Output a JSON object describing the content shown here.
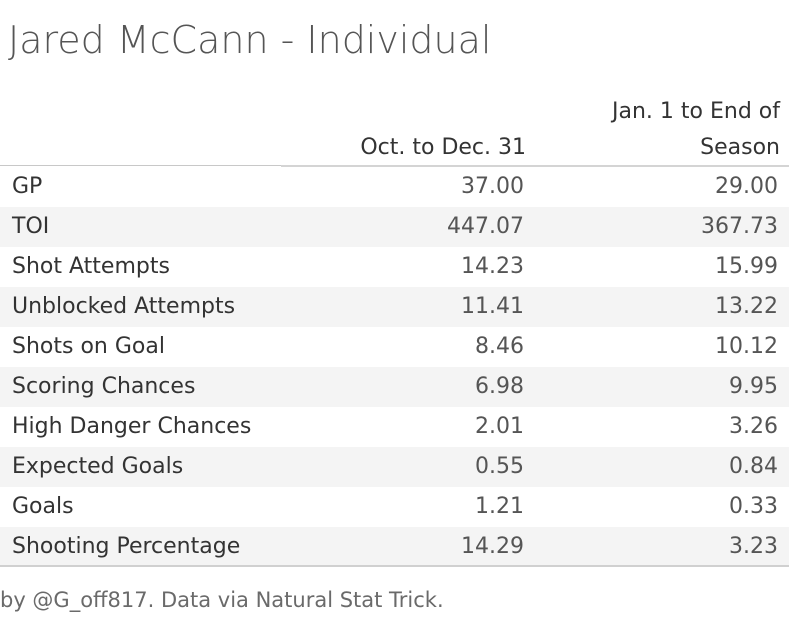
{
  "chart_data": {
    "type": "table",
    "title": "Jared McCann - Individual",
    "columns": [
      "Oct. to Dec. 31",
      "Jan. 1 to End of Season"
    ],
    "column_lines": [
      [
        "Oct. to Dec. 31"
      ],
      [
        "Jan. 1 to End of",
        "Season"
      ]
    ],
    "rows": [
      {
        "label": "GP",
        "values": [
          "37.00",
          "29.00"
        ]
      },
      {
        "label": "TOI",
        "values": [
          "447.07",
          "367.73"
        ]
      },
      {
        "label": "Shot Attempts",
        "values": [
          "14.23",
          "15.99"
        ]
      },
      {
        "label": "Unblocked Attempts",
        "values": [
          "11.41",
          "13.22"
        ]
      },
      {
        "label": "Shots on Goal",
        "values": [
          "8.46",
          "10.12"
        ]
      },
      {
        "label": "Scoring Chances",
        "values": [
          "6.98",
          "9.95"
        ]
      },
      {
        "label": "High Danger Chances",
        "values": [
          "2.01",
          "3.26"
        ]
      },
      {
        "label": "Expected Goals",
        "values": [
          "0.55",
          "0.84"
        ]
      },
      {
        "label": "Goals",
        "values": [
          "1.21",
          "0.33"
        ]
      },
      {
        "label": "Shooting Percentage",
        "values": [
          "14.29",
          "3.23"
        ]
      }
    ],
    "footer": "by @G_off817. Data via Natural Stat Trick.",
    "row_band_color": "#f4f4f4"
  }
}
